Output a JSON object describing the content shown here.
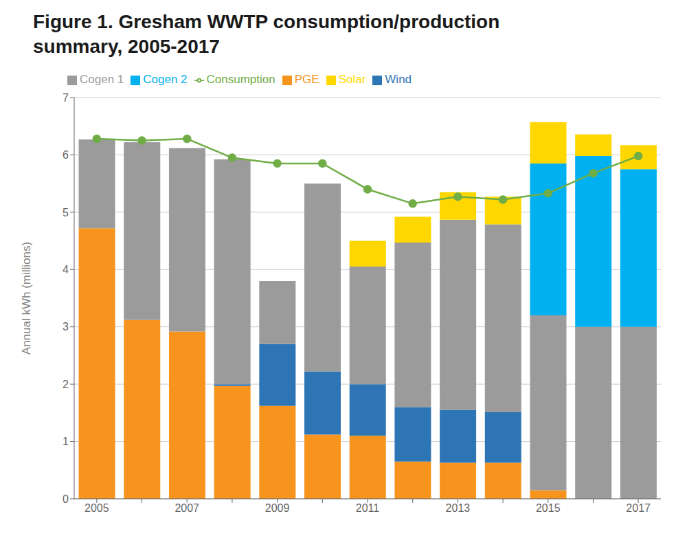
{
  "chart_data": {
    "type": "bar",
    "title": "Figure 1. Gresham WWTP consumption/production\nsummary, 2005-2017",
    "ylabel": "Annual kWh (millions)",
    "categories": [
      "2005",
      null,
      "2007",
      null,
      "2009",
      null,
      "2011",
      null,
      "2013",
      null,
      "2015",
      null,
      "2017"
    ],
    "series": [
      {
        "name": "PGE",
        "type": "bar",
        "color": "#F7941D",
        "values": [
          4.72,
          3.12,
          2.92,
          1.97,
          1.62,
          1.12,
          1.1,
          0.65,
          0.63,
          0.63,
          0.15,
          0.0,
          0.0
        ]
      },
      {
        "name": "Wind",
        "type": "bar",
        "color": "#2E75B6",
        "values": [
          0.0,
          0.0,
          0.0,
          0.03,
          1.08,
          1.1,
          0.9,
          0.95,
          0.92,
          0.88,
          0.0,
          0.0,
          0.0
        ]
      },
      {
        "name": "Cogen 1",
        "type": "bar",
        "color": "#9B9B9B",
        "values": [
          1.55,
          3.1,
          3.2,
          3.92,
          1.1,
          3.28,
          2.05,
          2.87,
          3.32,
          3.28,
          3.05,
          3.0,
          3.0
        ]
      },
      {
        "name": "Cogen 2",
        "type": "bar",
        "color": "#00B0F0",
        "values": [
          0.0,
          0.0,
          0.0,
          0.0,
          0.0,
          0.0,
          0.0,
          0.0,
          0.0,
          0.0,
          2.65,
          2.98,
          2.75
        ]
      },
      {
        "name": "Solar",
        "type": "bar",
        "color": "#FFD700",
        "values": [
          0.0,
          0.0,
          0.0,
          0.0,
          0.0,
          0.0,
          0.45,
          0.45,
          0.48,
          0.48,
          0.72,
          0.38,
          0.42
        ]
      },
      {
        "name": "Consumption",
        "type": "line",
        "color": "#70AD47",
        "marker": "circle",
        "values": [
          6.28,
          6.25,
          6.28,
          5.95,
          5.85,
          5.85,
          5.4,
          5.15,
          5.27,
          5.22,
          5.33,
          5.68,
          5.98
        ]
      }
    ],
    "stacked": true,
    "ylim": [
      0,
      7
    ],
    "yticks": [
      0,
      1,
      2,
      3,
      4,
      5,
      6,
      7
    ],
    "grid": true,
    "legend": "upper left"
  }
}
